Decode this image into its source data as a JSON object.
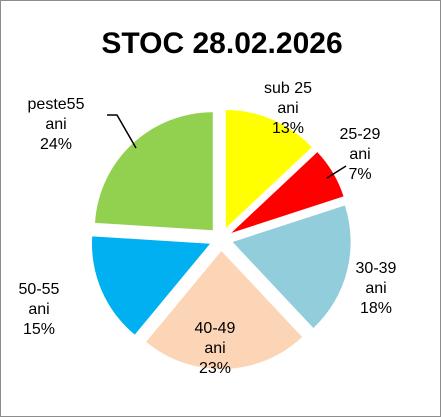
{
  "chart_data": {
    "type": "pie",
    "title": "STOC 28.02.2026",
    "categories": [
      "sub 25 ani",
      "25-29 ani",
      "30-39 ani",
      "40-49 ani",
      "50-55 ani",
      "peste55 ani"
    ],
    "values": [
      13,
      7,
      18,
      23,
      15,
      24
    ],
    "percent_labels": [
      "13%",
      "7%",
      "18%",
      "23%",
      "15%",
      "24%"
    ],
    "colors": [
      "#FFFF00",
      "#FF0000",
      "#92CDDC",
      "#FBD5B5",
      "#00B0F0",
      "#92D050"
    ],
    "exploded": true,
    "legend": "none",
    "labels": [
      {
        "lines": [
          "sub 25",
          "ani",
          "13%"
        ]
      },
      {
        "lines": [
          "25-29",
          "ani",
          "7%"
        ]
      },
      {
        "lines": [
          "30-39",
          "ani",
          "18%"
        ]
      },
      {
        "lines": [
          "40-49",
          "ani",
          "23%"
        ]
      },
      {
        "lines": [
          "50-55",
          "ani",
          "15%"
        ]
      },
      {
        "lines": [
          "peste55",
          "ani",
          "24%"
        ]
      }
    ]
  }
}
